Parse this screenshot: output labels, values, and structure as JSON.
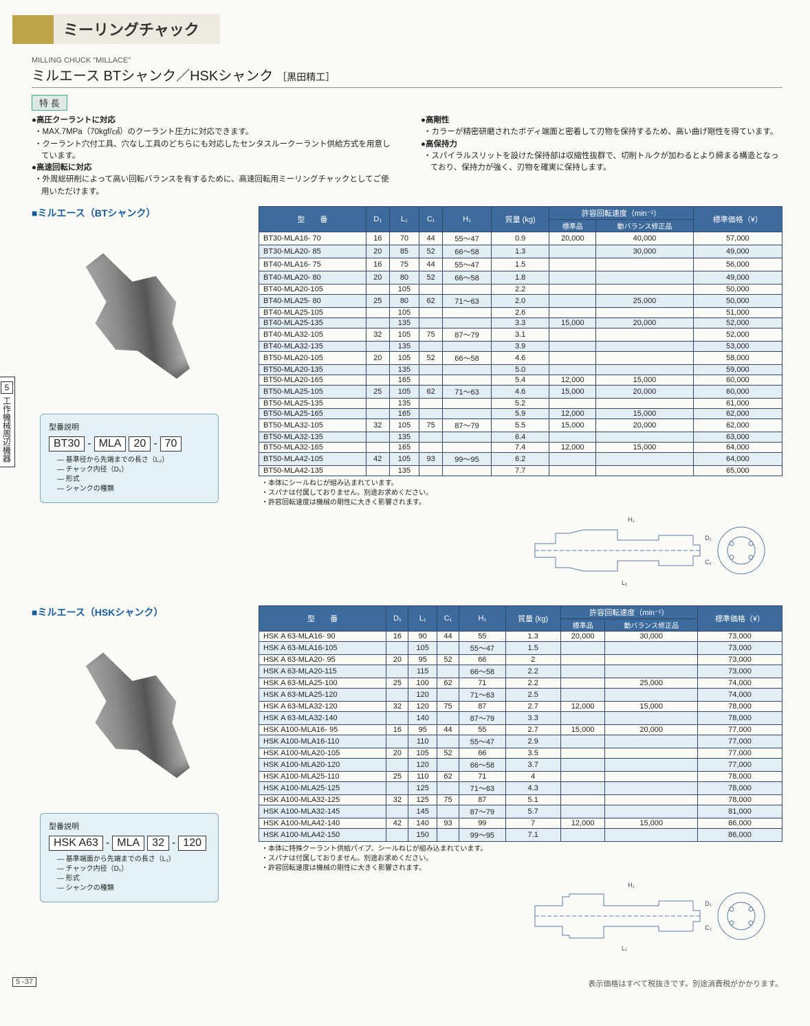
{
  "header": {
    "category": "ミーリングチャック",
    "eng": "MILLING CHUCK \"MILLACE\"",
    "title": "ミルエース BTシャンク／HSKシャンク",
    "maker": "［黒田精工］"
  },
  "features": {
    "heading": "特 長",
    "col1": [
      {
        "head": "●高圧クーラントに対応",
        "subs": [
          "・MAX.7MPa（70kgf/㎠）のクーラント圧力に対応できます。",
          "・クーラント穴付工具、穴なし工具のどちらにも対応したセンタスルークーラント供給方式を用意しています。"
        ]
      },
      {
        "head": "●高速回転に対応",
        "subs": [
          "・外周総研削によって高い回転バランスを有するために、高速回転用ミーリングチャックとしてご使用いただけます。"
        ]
      }
    ],
    "col2": [
      {
        "head": "●高剛性",
        "subs": [
          "・カラーが精密研磨されたボディ端面と密着して刃物を保持するため、高い曲げ剛性を得ています。"
        ]
      },
      {
        "head": "●高保持力",
        "subs": [
          "・スパイラルスリットを設けた保持部は収縮性抜群で、切削トルクが加わるとより締まる構造となっており、保持力が強く、刃物を確実に保持します。"
        ]
      }
    ]
  },
  "sections": {
    "bt": {
      "label": "■ミルエース（BTシャンク）",
      "model_explain_title": "型番説明",
      "model_segments": [
        "BT30",
        "-",
        "MLA",
        "20",
        "-",
        "70"
      ],
      "model_legend": [
        "基準径から先端までの長さ（L₂）",
        "チャック内径（D₁）",
        "形式",
        "シャンクの種類"
      ],
      "notes": [
        "・本体にシールねじが組み込まれています。",
        "・スパナは付属しておりません。別途お求めください。",
        "・許容回転速度は機械の剛性に大きく影響されます。"
      ]
    },
    "hsk": {
      "label": "■ミルエース（HSKシャンク）",
      "model_explain_title": "型番説明",
      "model_segments": [
        "HSK A63",
        "-",
        "MLA",
        "32",
        "-",
        "120"
      ],
      "model_legend": [
        "基準端面から先端までの長さ（L₁）",
        "チャック内径（D₁）",
        "形式",
        "シャンクの種類"
      ],
      "notes": [
        "・本体に特殊クーラント供給パイプ、シールねじが組み込まれています。",
        "・スパナは付属しておりません。別途お求めください。",
        "・許容回転速度は機械の剛性に大きく影響されます。"
      ]
    }
  },
  "table_headers": {
    "model": "型　　番",
    "D1": "D₁",
    "L1": "L₁",
    "C1": "C₁",
    "H1": "H₁",
    "mass": "質量\n(kg)",
    "rpm_group": "許容回転速度（min⁻¹）",
    "rpm_std": "標準品",
    "rpm_bal": "動バランス修正品",
    "price": "標準価格（¥）"
  },
  "bt_rows": [
    {
      "m": "BT30-MLA16- 70",
      "d": "16",
      "l": "70",
      "c": "44",
      "h": "55〜47",
      "kg": "0.9",
      "r1": "20,000",
      "r2": "40,000",
      "p": "57,000",
      "shade": 0
    },
    {
      "m": "BT30-MLA20- 85",
      "d": "20",
      "l": "85",
      "c": "52",
      "h": "66〜58",
      "kg": "1.3",
      "r1": "",
      "r2": "30,000",
      "p": "49,000",
      "shade": 1
    },
    {
      "m": "BT40-MLA16- 75",
      "d": "16",
      "l": "75",
      "c": "44",
      "h": "55〜47",
      "kg": "1.5",
      "r1": "",
      "r2": "",
      "p": "56,000",
      "shade": 0
    },
    {
      "m": "BT40-MLA20- 80",
      "d": "20",
      "l": "80",
      "c": "52",
      "h": "66〜58",
      "kg": "1.8",
      "r1": "",
      "r2": "",
      "p": "49,000",
      "shade": 1
    },
    {
      "m": "BT40-MLA20-105",
      "d": "",
      "l": "105",
      "c": "",
      "h": "",
      "kg": "2.2",
      "r1": "",
      "r2": "",
      "p": "50,000",
      "shade": 0
    },
    {
      "m": "BT40-MLA25- 80",
      "d": "25",
      "l": "80",
      "c": "62",
      "h": "71〜63",
      "kg": "2.0",
      "r1": "",
      "r2": "25,000",
      "p": "50,000",
      "shade": 1
    },
    {
      "m": "BT40-MLA25-105",
      "d": "",
      "l": "105",
      "c": "",
      "h": "",
      "kg": "2.6",
      "r1": "",
      "r2": "",
      "p": "51,000",
      "shade": 0
    },
    {
      "m": "BT40-MLA25-135",
      "d": "",
      "l": "135",
      "c": "",
      "h": "",
      "kg": "3.3",
      "r1": "15,000",
      "r2": "20,000",
      "p": "52,000",
      "shade": 1
    },
    {
      "m": "BT40-MLA32-105",
      "d": "32",
      "l": "105",
      "c": "75",
      "h": "87〜79",
      "kg": "3.1",
      "r1": "",
      "r2": "",
      "p": "52,000",
      "shade": 0
    },
    {
      "m": "BT40-MLA32-135",
      "d": "",
      "l": "135",
      "c": "",
      "h": "",
      "kg": "3.9",
      "r1": "",
      "r2": "",
      "p": "53,000",
      "shade": 1
    },
    {
      "m": "BT50-MLA20-105",
      "d": "20",
      "l": "105",
      "c": "52",
      "h": "66〜58",
      "kg": "4.6",
      "r1": "",
      "r2": "",
      "p": "58,000",
      "shade": 0
    },
    {
      "m": "BT50-MLA20-135",
      "d": "",
      "l": "135",
      "c": "",
      "h": "",
      "kg": "5.0",
      "r1": "",
      "r2": "",
      "p": "59,000",
      "shade": 1
    },
    {
      "m": "BT50-MLA20-165",
      "d": "",
      "l": "165",
      "c": "",
      "h": "",
      "kg": "5.4",
      "r1": "12,000",
      "r2": "15,000",
      "p": "60,000",
      "shade": 0
    },
    {
      "m": "BT50-MLA25-105",
      "d": "25",
      "l": "105",
      "c": "62",
      "h": "71〜63",
      "kg": "4.6",
      "r1": "15,000",
      "r2": "20,000",
      "p": "60,000",
      "shade": 1
    },
    {
      "m": "BT50-MLA25-135",
      "d": "",
      "l": "135",
      "c": "",
      "h": "",
      "kg": "5.2",
      "r1": "",
      "r2": "",
      "p": "61,000",
      "shade": 0
    },
    {
      "m": "BT50-MLA25-165",
      "d": "",
      "l": "165",
      "c": "",
      "h": "",
      "kg": "5.9",
      "r1": "12,000",
      "r2": "15,000",
      "p": "62,000",
      "shade": 1
    },
    {
      "m": "BT50-MLA32-105",
      "d": "32",
      "l": "105",
      "c": "75",
      "h": "87〜79",
      "kg": "5.5",
      "r1": "15,000",
      "r2": "20,000",
      "p": "62,000",
      "shade": 0
    },
    {
      "m": "BT50-MLA32-135",
      "d": "",
      "l": "135",
      "c": "",
      "h": "",
      "kg": "6.4",
      "r1": "",
      "r2": "",
      "p": "63,000",
      "shade": 1
    },
    {
      "m": "BT50-MLA32-165",
      "d": "",
      "l": "165",
      "c": "",
      "h": "",
      "kg": "7.4",
      "r1": "12,000",
      "r2": "15,000",
      "p": "64,000",
      "shade": 0
    },
    {
      "m": "BT50-MLA42-105",
      "d": "42",
      "l": "105",
      "c": "93",
      "h": "99〜95",
      "kg": "6.2",
      "r1": "",
      "r2": "",
      "p": "64,000",
      "shade": 1
    },
    {
      "m": "BT50-MLA42-135",
      "d": "",
      "l": "135",
      "c": "",
      "h": "",
      "kg": "7.7",
      "r1": "",
      "r2": "",
      "p": "65,000",
      "shade": 0
    }
  ],
  "hsk_rows": [
    {
      "m": "HSK A 63-MLA16- 90",
      "d": "16",
      "l": "90",
      "c": "44",
      "h": "55",
      "kg": "1.3",
      "r1": "20,000",
      "r2": "30,000",
      "p": "73,000",
      "shade": 0
    },
    {
      "m": "HSK A 63-MLA16-105",
      "d": "",
      "l": "105",
      "c": "",
      "h": "55〜47",
      "kg": "1.5",
      "r1": "",
      "r2": "",
      "p": "73,000",
      "shade": 1
    },
    {
      "m": "HSK A 63-MLA20- 95",
      "d": "20",
      "l": "95",
      "c": "52",
      "h": "66",
      "kg": "2",
      "r1": "",
      "r2": "",
      "p": "73,000",
      "shade": 0
    },
    {
      "m": "HSK A 63-MLA20-115",
      "d": "",
      "l": "115",
      "c": "",
      "h": "66〜58",
      "kg": "2.2",
      "r1": "",
      "r2": "",
      "p": "73,000",
      "shade": 1
    },
    {
      "m": "HSK A 63-MLA25-100",
      "d": "25",
      "l": "100",
      "c": "62",
      "h": "71",
      "kg": "2.2",
      "r1": "",
      "r2": "25,000",
      "p": "74,000",
      "shade": 0
    },
    {
      "m": "HSK A 63-MLA25-120",
      "d": "",
      "l": "120",
      "c": "",
      "h": "71〜63",
      "kg": "2.5",
      "r1": "",
      "r2": "",
      "p": "74,000",
      "shade": 1
    },
    {
      "m": "HSK A 63-MLA32-120",
      "d": "32",
      "l": "120",
      "c": "75",
      "h": "87",
      "kg": "2.7",
      "r1": "12,000",
      "r2": "15,000",
      "p": "78,000",
      "shade": 0
    },
    {
      "m": "HSK A 63-MLA32-140",
      "d": "",
      "l": "140",
      "c": "",
      "h": "87〜79",
      "kg": "3.3",
      "r1": "",
      "r2": "",
      "p": "78,000",
      "shade": 1
    },
    {
      "m": "HSK A100-MLA16- 95",
      "d": "16",
      "l": "95",
      "c": "44",
      "h": "55",
      "kg": "2.7",
      "r1": "15,000",
      "r2": "20,000",
      "p": "77,000",
      "shade": 0
    },
    {
      "m": "HSK A100-MLA16-110",
      "d": "",
      "l": "110",
      "c": "",
      "h": "55〜47",
      "kg": "2.9",
      "r1": "",
      "r2": "",
      "p": "77,000",
      "shade": 1
    },
    {
      "m": "HSK A100-MLA20-105",
      "d": "20",
      "l": "105",
      "c": "52",
      "h": "66",
      "kg": "3.5",
      "r1": "",
      "r2": "",
      "p": "77,000",
      "shade": 0
    },
    {
      "m": "HSK A100-MLA20-120",
      "d": "",
      "l": "120",
      "c": "",
      "h": "66〜58",
      "kg": "3.7",
      "r1": "",
      "r2": "",
      "p": "77,000",
      "shade": 1
    },
    {
      "m": "HSK A100-MLA25-110",
      "d": "25",
      "l": "110",
      "c": "62",
      "h": "71",
      "kg": "4",
      "r1": "",
      "r2": "",
      "p": "78,000",
      "shade": 0
    },
    {
      "m": "HSK A100-MLA25-125",
      "d": "",
      "l": "125",
      "c": "",
      "h": "71〜63",
      "kg": "4.3",
      "r1": "",
      "r2": "",
      "p": "78,000",
      "shade": 1
    },
    {
      "m": "HSK A100-MLA32-125",
      "d": "32",
      "l": "125",
      "c": "75",
      "h": "87",
      "kg": "5.1",
      "r1": "",
      "r2": "",
      "p": "78,000",
      "shade": 0
    },
    {
      "m": "HSK A100-MLA32-145",
      "d": "",
      "l": "145",
      "c": "",
      "h": "87〜79",
      "kg": "5.7",
      "r1": "",
      "r2": "",
      "p": "81,000",
      "shade": 1
    },
    {
      "m": "HSK A100-MLA42-140",
      "d": "42",
      "l": "140",
      "c": "93",
      "h": "99",
      "kg": "7",
      "r1": "12,000",
      "r2": "15,000",
      "p": "86,000",
      "shade": 0
    },
    {
      "m": "HSK A100-MLA42-150",
      "d": "",
      "l": "150",
      "c": "",
      "h": "99〜95",
      "kg": "7.1",
      "r1": "",
      "r2": "",
      "p": "86,000",
      "shade": 1
    }
  ],
  "side_tab": {
    "num": "5",
    "text": "工作機械周辺機器"
  },
  "footer": {
    "page": "5 -37",
    "note": "表示価格はすべて税抜きです。別途消費税がかかります。"
  },
  "dim_labels": {
    "H1": "H₁",
    "C1": "C₁",
    "D1": "D₁",
    "L": "L₁"
  }
}
